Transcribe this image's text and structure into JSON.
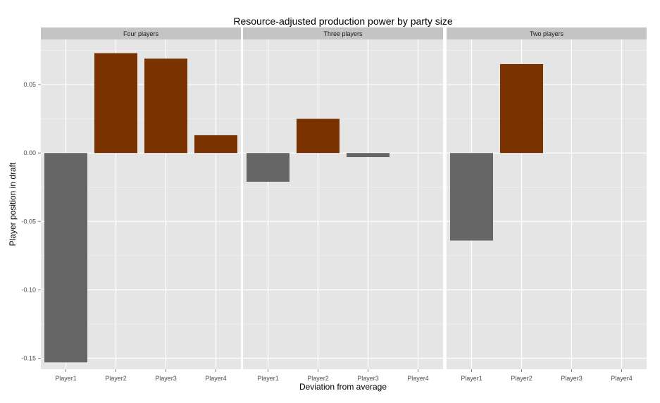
{
  "chart_data": {
    "type": "bar",
    "title": "Resource-adjusted production power by party size",
    "xlabel": "Deviation from average",
    "ylabel": "Player position in draft",
    "categories": [
      "Player1",
      "Player2",
      "Player3",
      "Player4"
    ],
    "ylim": [
      -0.158,
      0.083
    ],
    "yticks": [
      0.05,
      0.0,
      -0.05,
      -0.1,
      -0.15
    ],
    "ytick_labels": [
      "0.05",
      "0.00",
      "-0.05",
      "-0.10",
      "-0.15"
    ],
    "grid": true,
    "legend": "none",
    "colors": {
      "positive": "#7a3300",
      "negative": "#666666",
      "panel_background": "#e5e5e5",
      "strip_background": "#c4c4c4",
      "gridline": "#ffffff"
    },
    "facets": [
      {
        "name": "Four players",
        "values": [
          -0.153,
          0.073,
          0.069,
          0.013
        ]
      },
      {
        "name": "Three players",
        "values": [
          -0.021,
          0.025,
          -0.003,
          null
        ]
      },
      {
        "name": "Two players",
        "values": [
          -0.064,
          0.065,
          null,
          null
        ]
      }
    ]
  }
}
